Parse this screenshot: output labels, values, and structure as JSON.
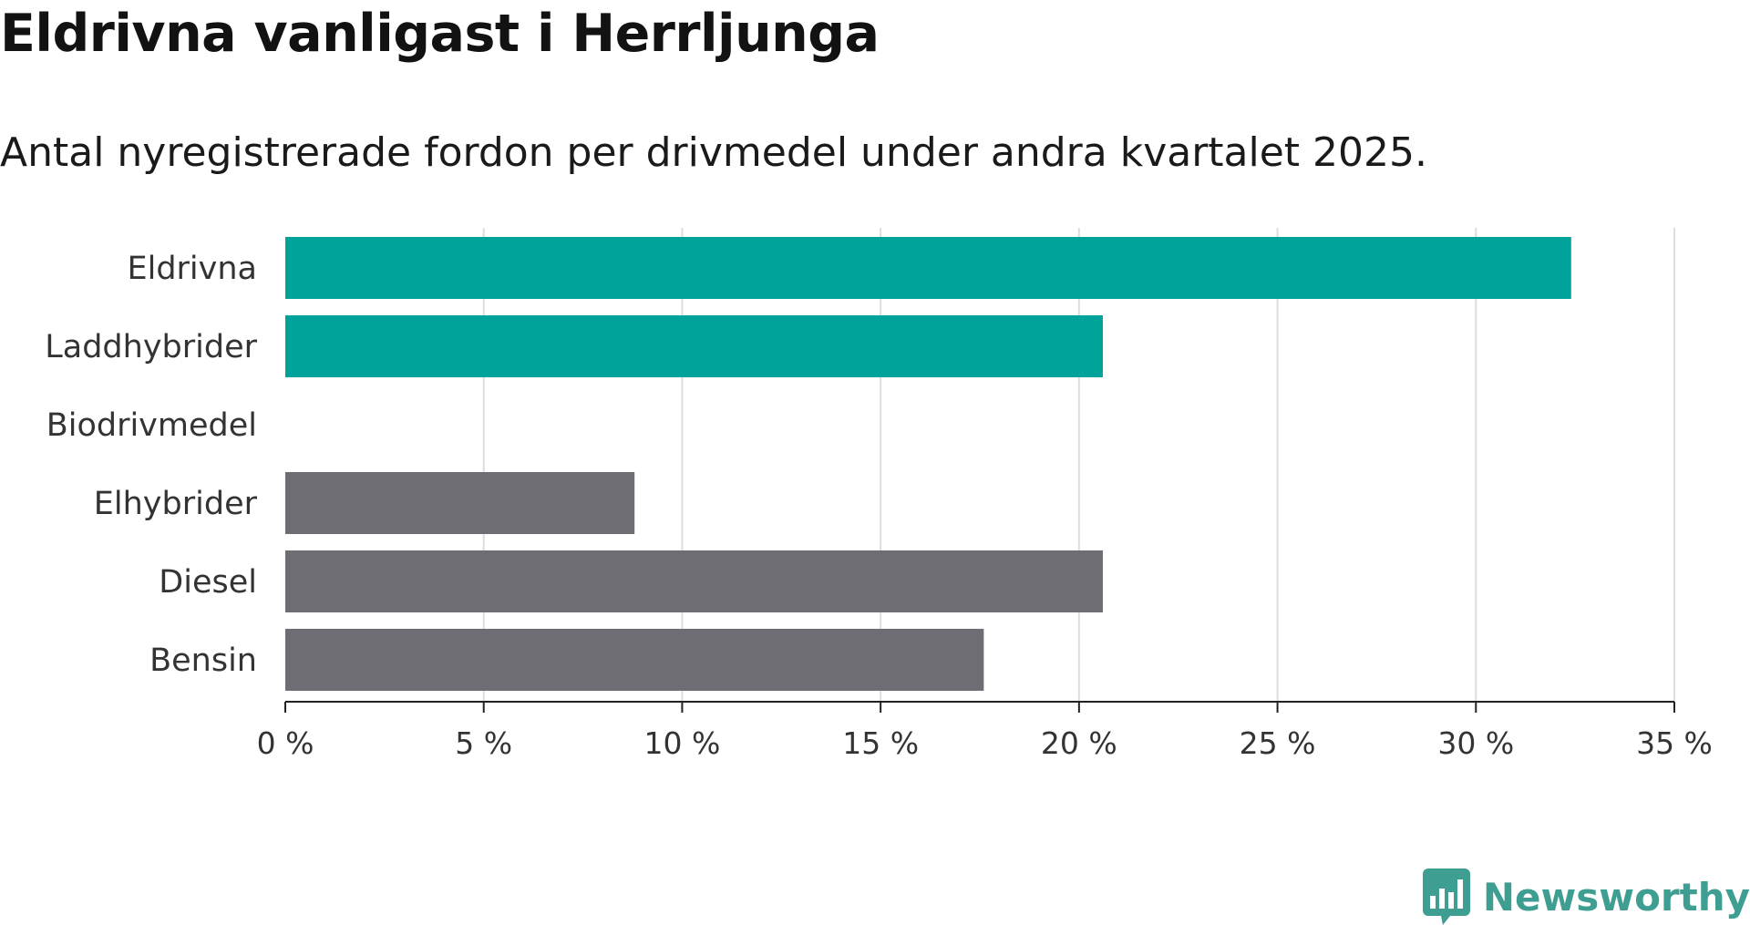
{
  "title": "Eldrivna vanligast i Herrljunga",
  "subtitle": "Antal nyregistrerade fordon per drivmedel under andra kvartalet 2025.",
  "brand": {
    "name": "Newsworthy",
    "icon": "newsworthy-chart-icon",
    "color": "#3e9e92"
  },
  "colors": {
    "highlight": "#00a39a",
    "default": "#6e6d73",
    "grid": "#dddddd",
    "axis": "#222222"
  },
  "chart_data": {
    "type": "bar",
    "orientation": "horizontal",
    "title": "Eldrivna vanligast i Herrljunga",
    "subtitle": "Antal nyregistrerade fordon per drivmedel under andra kvartalet 2025.",
    "categories": [
      "Eldrivna",
      "Laddhybrider",
      "Biodrivmedel",
      "Elhybrider",
      "Diesel",
      "Bensin"
    ],
    "values": [
      32.4,
      20.6,
      0,
      8.8,
      20.6,
      17.6
    ],
    "highlight": [
      true,
      true,
      false,
      false,
      false,
      false
    ],
    "xlim": [
      0,
      35
    ],
    "xticks": [
      0,
      5,
      10,
      15,
      20,
      25,
      30,
      35
    ],
    "xtick_labels": [
      "0 %",
      "5 %",
      "10 %",
      "15 %",
      "20 %",
      "25 %",
      "30 %",
      "35 %"
    ],
    "unit": "%",
    "grid": "vertical",
    "legend": "none"
  }
}
